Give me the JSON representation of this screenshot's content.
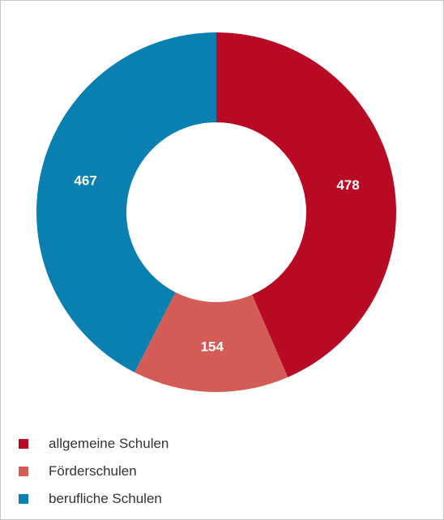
{
  "chart_data": {
    "type": "pie",
    "variant": "donut",
    "categories": [
      "allgemeine Schulen",
      "Förderschulen",
      "berufliche Schulen"
    ],
    "values": [
      478,
      154,
      467
    ],
    "colors": [
      "#b80a25",
      "#d35d56",
      "#0a80b0"
    ],
    "data_labels": [
      "478",
      "154",
      "467"
    ],
    "legend_position": "bottom-left",
    "start_angle_deg": 0,
    "direction": "clockwise"
  },
  "legend": {
    "items": [
      {
        "label": "allgemeine Schulen",
        "color": "#b80a25"
      },
      {
        "label": "Förderschulen",
        "color": "#d35d56"
      },
      {
        "label": "berufliche Schulen",
        "color": "#0a80b0"
      }
    ]
  }
}
